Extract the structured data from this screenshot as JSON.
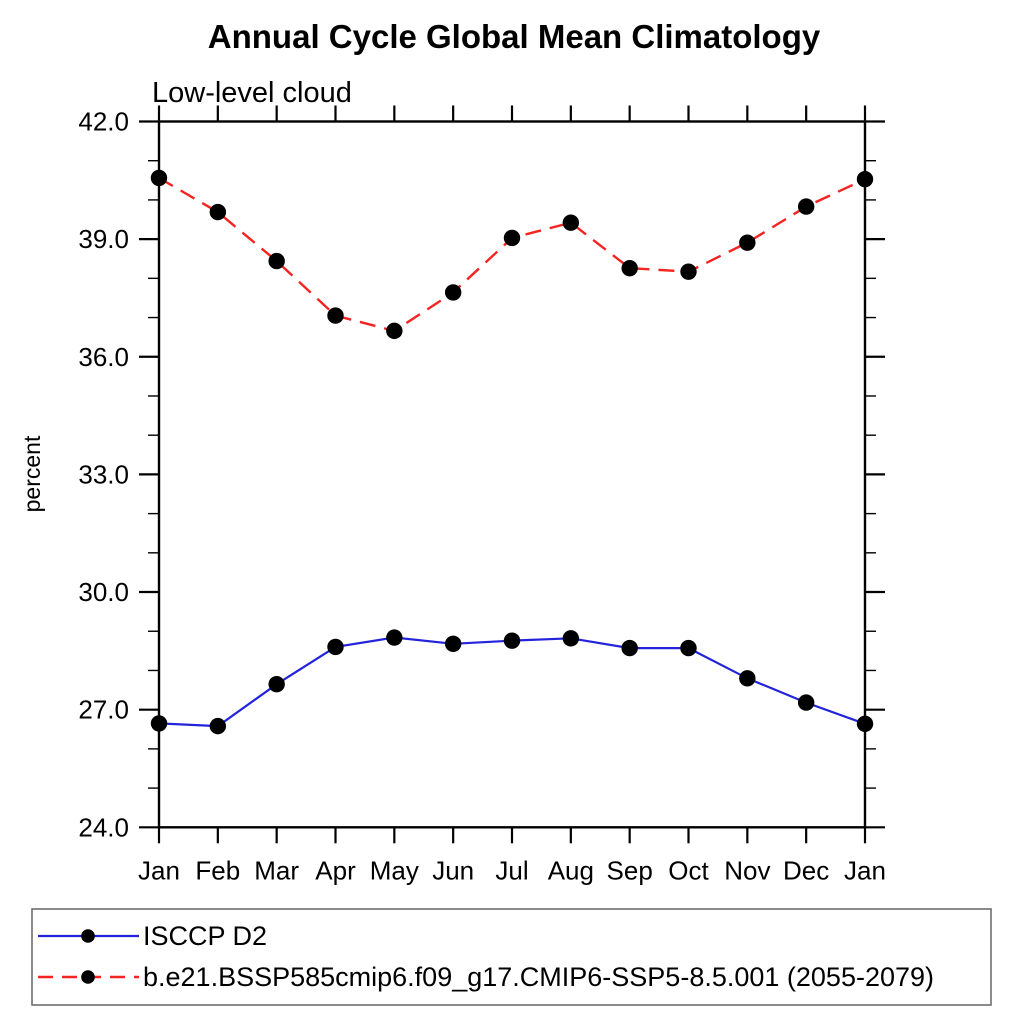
{
  "title": "Annual Cycle Global Mean Climatology",
  "subtitle": "Low-level cloud",
  "ylabel": "percent",
  "colors": {
    "obs_line": "#2323dc",
    "model_line": "#f42421",
    "marker": "#000000",
    "axis": "#000000",
    "legend_border": "#6e6e6e"
  },
  "legend": {
    "items": [
      {
        "name": "ISCCP D2",
        "style": "solid",
        "color": "#2323dc"
      },
      {
        "name": "b.e21.BSSP585cmip6.f09_g17.CMIP6-SSP5-8.5.001 (2055-2079)",
        "style": "dashed",
        "color": "#f42421"
      }
    ]
  },
  "chart_data": {
    "type": "line",
    "title": "Annual Cycle Global Mean Climatology",
    "subtitle": "Low-level cloud",
    "xlabel": "",
    "ylabel": "percent",
    "categories": [
      "Jan",
      "Feb",
      "Mar",
      "Apr",
      "May",
      "Jun",
      "Jul",
      "Aug",
      "Sep",
      "Oct",
      "Nov",
      "Dec",
      "Jan"
    ],
    "series": [
      {
        "name": "ISCCP D2",
        "color": "#2323dc",
        "dash": "solid",
        "marker": "filled-circle",
        "values": [
          26.65,
          26.58,
          27.65,
          28.6,
          28.84,
          28.68,
          28.76,
          28.82,
          28.57,
          28.57,
          27.8,
          27.18,
          26.64
        ]
      },
      {
        "name": "b.e21.BSSP585cmip6.f09_g17.CMIP6-SSP5-8.5.001 (2055-2079)",
        "color": "#f42421",
        "dash": "dashed",
        "marker": "filled-circle",
        "values": [
          40.56,
          39.69,
          38.44,
          37.05,
          36.66,
          37.64,
          39.03,
          39.42,
          38.26,
          38.17,
          38.91,
          39.83,
          40.53
        ]
      }
    ],
    "ylim": [
      24.0,
      42.0
    ],
    "ytick_step": 3.0,
    "yminor_step": 1.0,
    "ytick_labels": [
      "24.0",
      "27.0",
      "30.0",
      "33.0",
      "36.0",
      "39.0",
      "42.0"
    ],
    "grid": false,
    "legend_position": "bottom",
    "tick_direction": "out"
  }
}
